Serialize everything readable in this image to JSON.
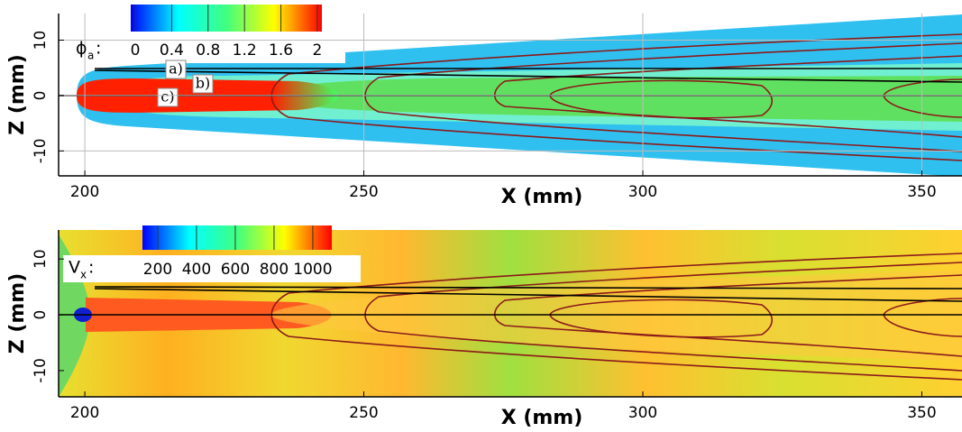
{
  "chart_data": [
    {
      "type": "contour",
      "xlabel": "X (mm)",
      "ylabel": "Z (mm)",
      "xlim": [
        195.3,
        357.2
      ],
      "xticks": [
        200,
        250,
        300,
        350
      ],
      "ylim": [
        -14.5,
        14.8
      ],
      "yticks": [
        -10,
        0,
        10
      ],
      "grid": true,
      "colorbar": {
        "symbol": "ϕ",
        "subscript": "a",
        "suffix": ":",
        "colormap": "jet",
        "clim": [
          -0.05,
          2.05
        ],
        "ticks": [
          0,
          0.4,
          0.8,
          1.2,
          1.6,
          2
        ]
      },
      "annotations": [
        "a)",
        "b)",
        "c)"
      ]
    },
    {
      "type": "contour",
      "xlabel": "X (mm)",
      "ylabel": "Z (mm)",
      "xlim": [
        195.3,
        357.2
      ],
      "xticks": [
        200,
        250,
        300,
        350
      ],
      "ylim": [
        -14.7,
        15.2
      ],
      "yticks": [
        -10,
        0,
        10
      ],
      "grid": false,
      "colorbar": {
        "symbol": "V",
        "subscript": "x",
        "suffix": ":",
        "colormap": "jet",
        "clim": [
          121,
          1098
        ],
        "ticks": [
          200,
          400,
          600,
          800,
          1000
        ]
      }
    }
  ]
}
